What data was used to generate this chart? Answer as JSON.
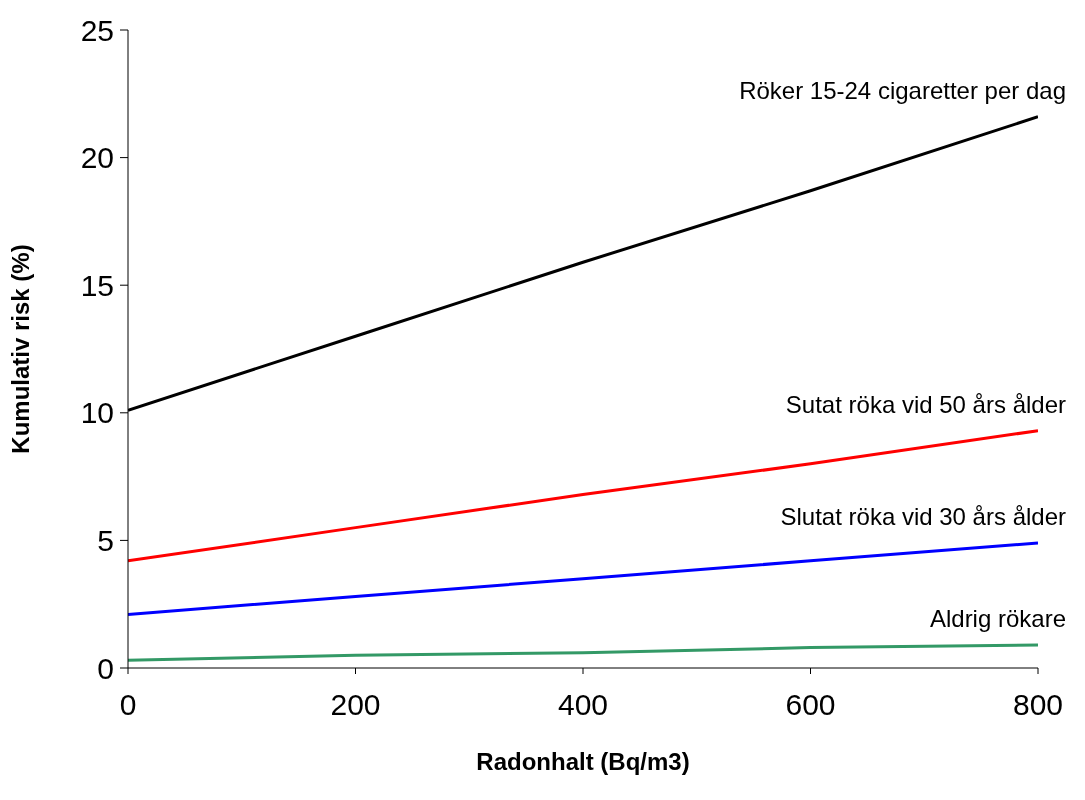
{
  "chart_data": {
    "type": "line",
    "xlabel": "Radonhalt (Bq/m3)",
    "ylabel": "Kumulativ risk (%)",
    "x": [
      0,
      200,
      400,
      600,
      800
    ],
    "series": [
      {
        "name": "Röker 15-24 cigaretter per dag",
        "color": "#000000",
        "values": [
          10.1,
          13.0,
          15.9,
          18.7,
          21.6
        ]
      },
      {
        "name": "Sutat röka vid 50 års ålder",
        "color": "#ff0000",
        "values": [
          4.2,
          5.5,
          6.8,
          8.0,
          9.3
        ]
      },
      {
        "name": "Slutat röka vid 30 års ålder",
        "color": "#0000ff",
        "values": [
          2.1,
          2.8,
          3.5,
          4.2,
          4.9
        ]
      },
      {
        "name": "Aldrig rökare",
        "color": "#339966",
        "values": [
          0.3,
          0.5,
          0.6,
          0.8,
          0.9
        ]
      }
    ],
    "xlim": [
      0,
      800
    ],
    "xticks": [
      0,
      200,
      400,
      600,
      800
    ],
    "ylim": [
      0,
      25
    ],
    "yticks": [
      0,
      5,
      10,
      15,
      20,
      25
    ],
    "grid": false,
    "legend": false
  }
}
